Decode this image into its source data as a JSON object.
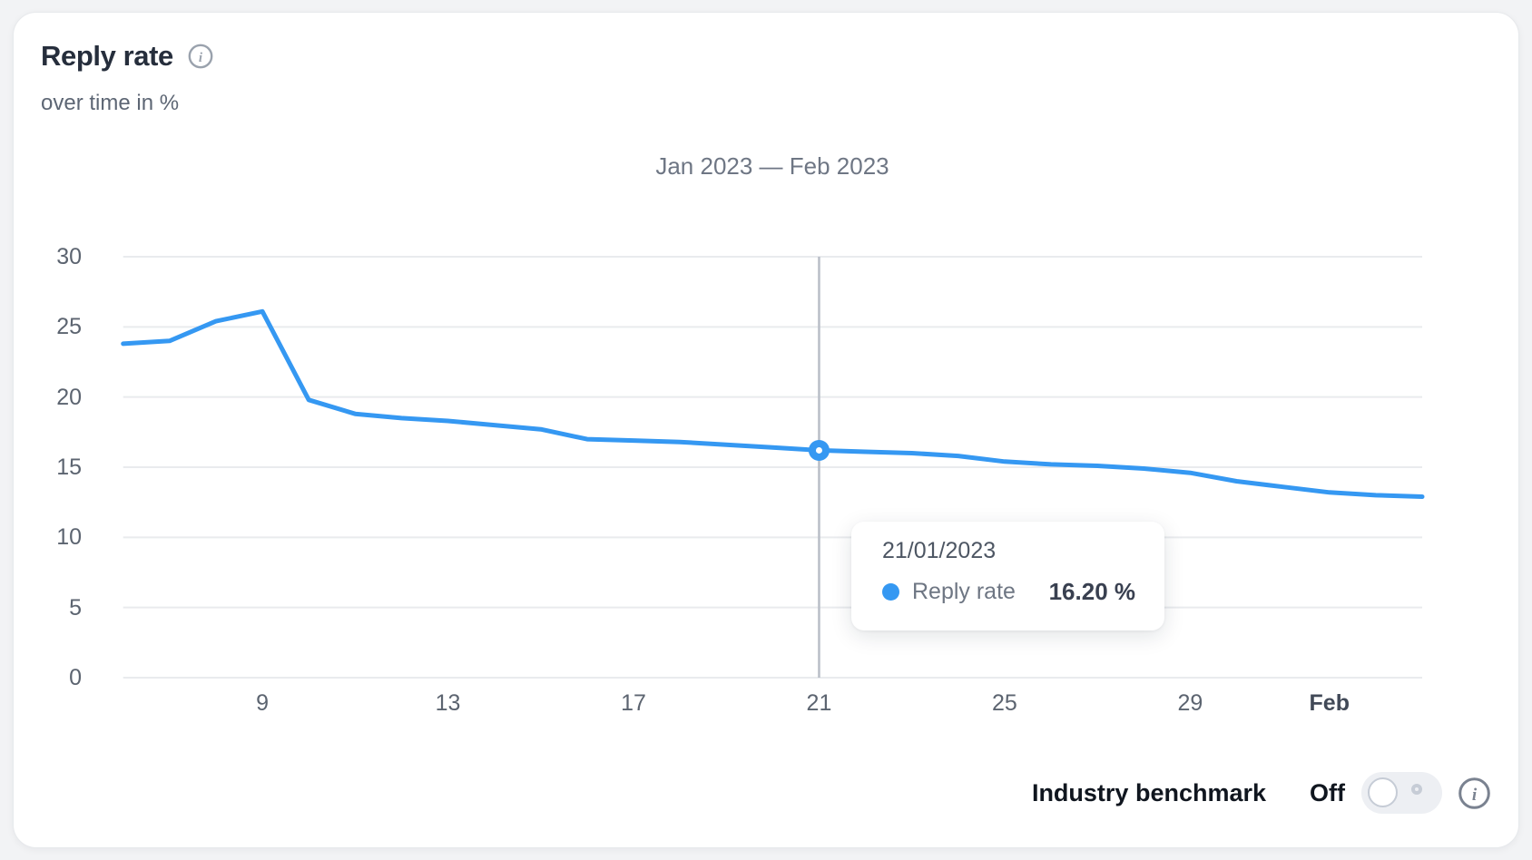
{
  "header": {
    "title": "Reply rate",
    "subtitle": "over time in %",
    "info_icon": "info-icon"
  },
  "chart": {
    "range_title": "Jan 2023 — Feb 2023"
  },
  "tooltip": {
    "date": "21/01/2023",
    "series": "Reply rate",
    "value": "16.20 %",
    "dot_icon": "series-dot-icon"
  },
  "footer": {
    "benchmark_label": "Industry benchmark",
    "toggle_state": "Off",
    "info_icon": "info-icon"
  },
  "colors": {
    "accent_blue": "#3598f2",
    "grid": "#e9ebee",
    "highlight_line": "#b9bec7",
    "title_text": "#262e3c",
    "muted_text": "#5c6470",
    "icon_gray": "#9aa2ad",
    "icon_dark_gray": "#7a8290"
  },
  "chart_data": {
    "type": "line",
    "title": "Jan 2023 — Feb 2023",
    "series_name": "Reply rate",
    "unit": "%",
    "dates": [
      "06/01/2023",
      "07/01/2023",
      "08/01/2023",
      "09/01/2023",
      "10/01/2023",
      "11/01/2023",
      "12/01/2023",
      "13/01/2023",
      "14/01/2023",
      "15/01/2023",
      "16/01/2023",
      "17/01/2023",
      "18/01/2023",
      "19/01/2023",
      "20/01/2023",
      "21/01/2023",
      "22/01/2023",
      "23/01/2023",
      "24/01/2023",
      "25/01/2023",
      "26/01/2023",
      "27/01/2023",
      "28/01/2023",
      "29/01/2023",
      "30/01/2023",
      "31/01/2023",
      "01/02/2023",
      "02/02/2023",
      "03/02/2023"
    ],
    "values": [
      23.8,
      24.0,
      25.4,
      26.1,
      19.8,
      18.8,
      18.5,
      18.3,
      18.0,
      17.7,
      17.0,
      16.9,
      16.8,
      16.6,
      16.4,
      16.2,
      16.1,
      16.0,
      15.8,
      15.4,
      15.2,
      15.1,
      14.9,
      14.6,
      14.0,
      13.6,
      13.2,
      13.0,
      12.9
    ],
    "ylim": [
      0,
      30
    ],
    "yticks": [
      0,
      5,
      10,
      15,
      20,
      25,
      30
    ],
    "xticks": [
      {
        "index": 3,
        "label": "9",
        "bold": false
      },
      {
        "index": 7,
        "label": "13",
        "bold": false
      },
      {
        "index": 11,
        "label": "17",
        "bold": false
      },
      {
        "index": 15,
        "label": "21",
        "bold": false
      },
      {
        "index": 19,
        "label": "25",
        "bold": false
      },
      {
        "index": 23,
        "label": "29",
        "bold": false
      },
      {
        "index": 26,
        "label": "Feb",
        "bold": true
      }
    ],
    "highlight": {
      "index": 15,
      "date": "21/01/2023",
      "value": 16.2,
      "display_value": "16.20 %"
    },
    "grid": true,
    "legend_position": "none"
  }
}
